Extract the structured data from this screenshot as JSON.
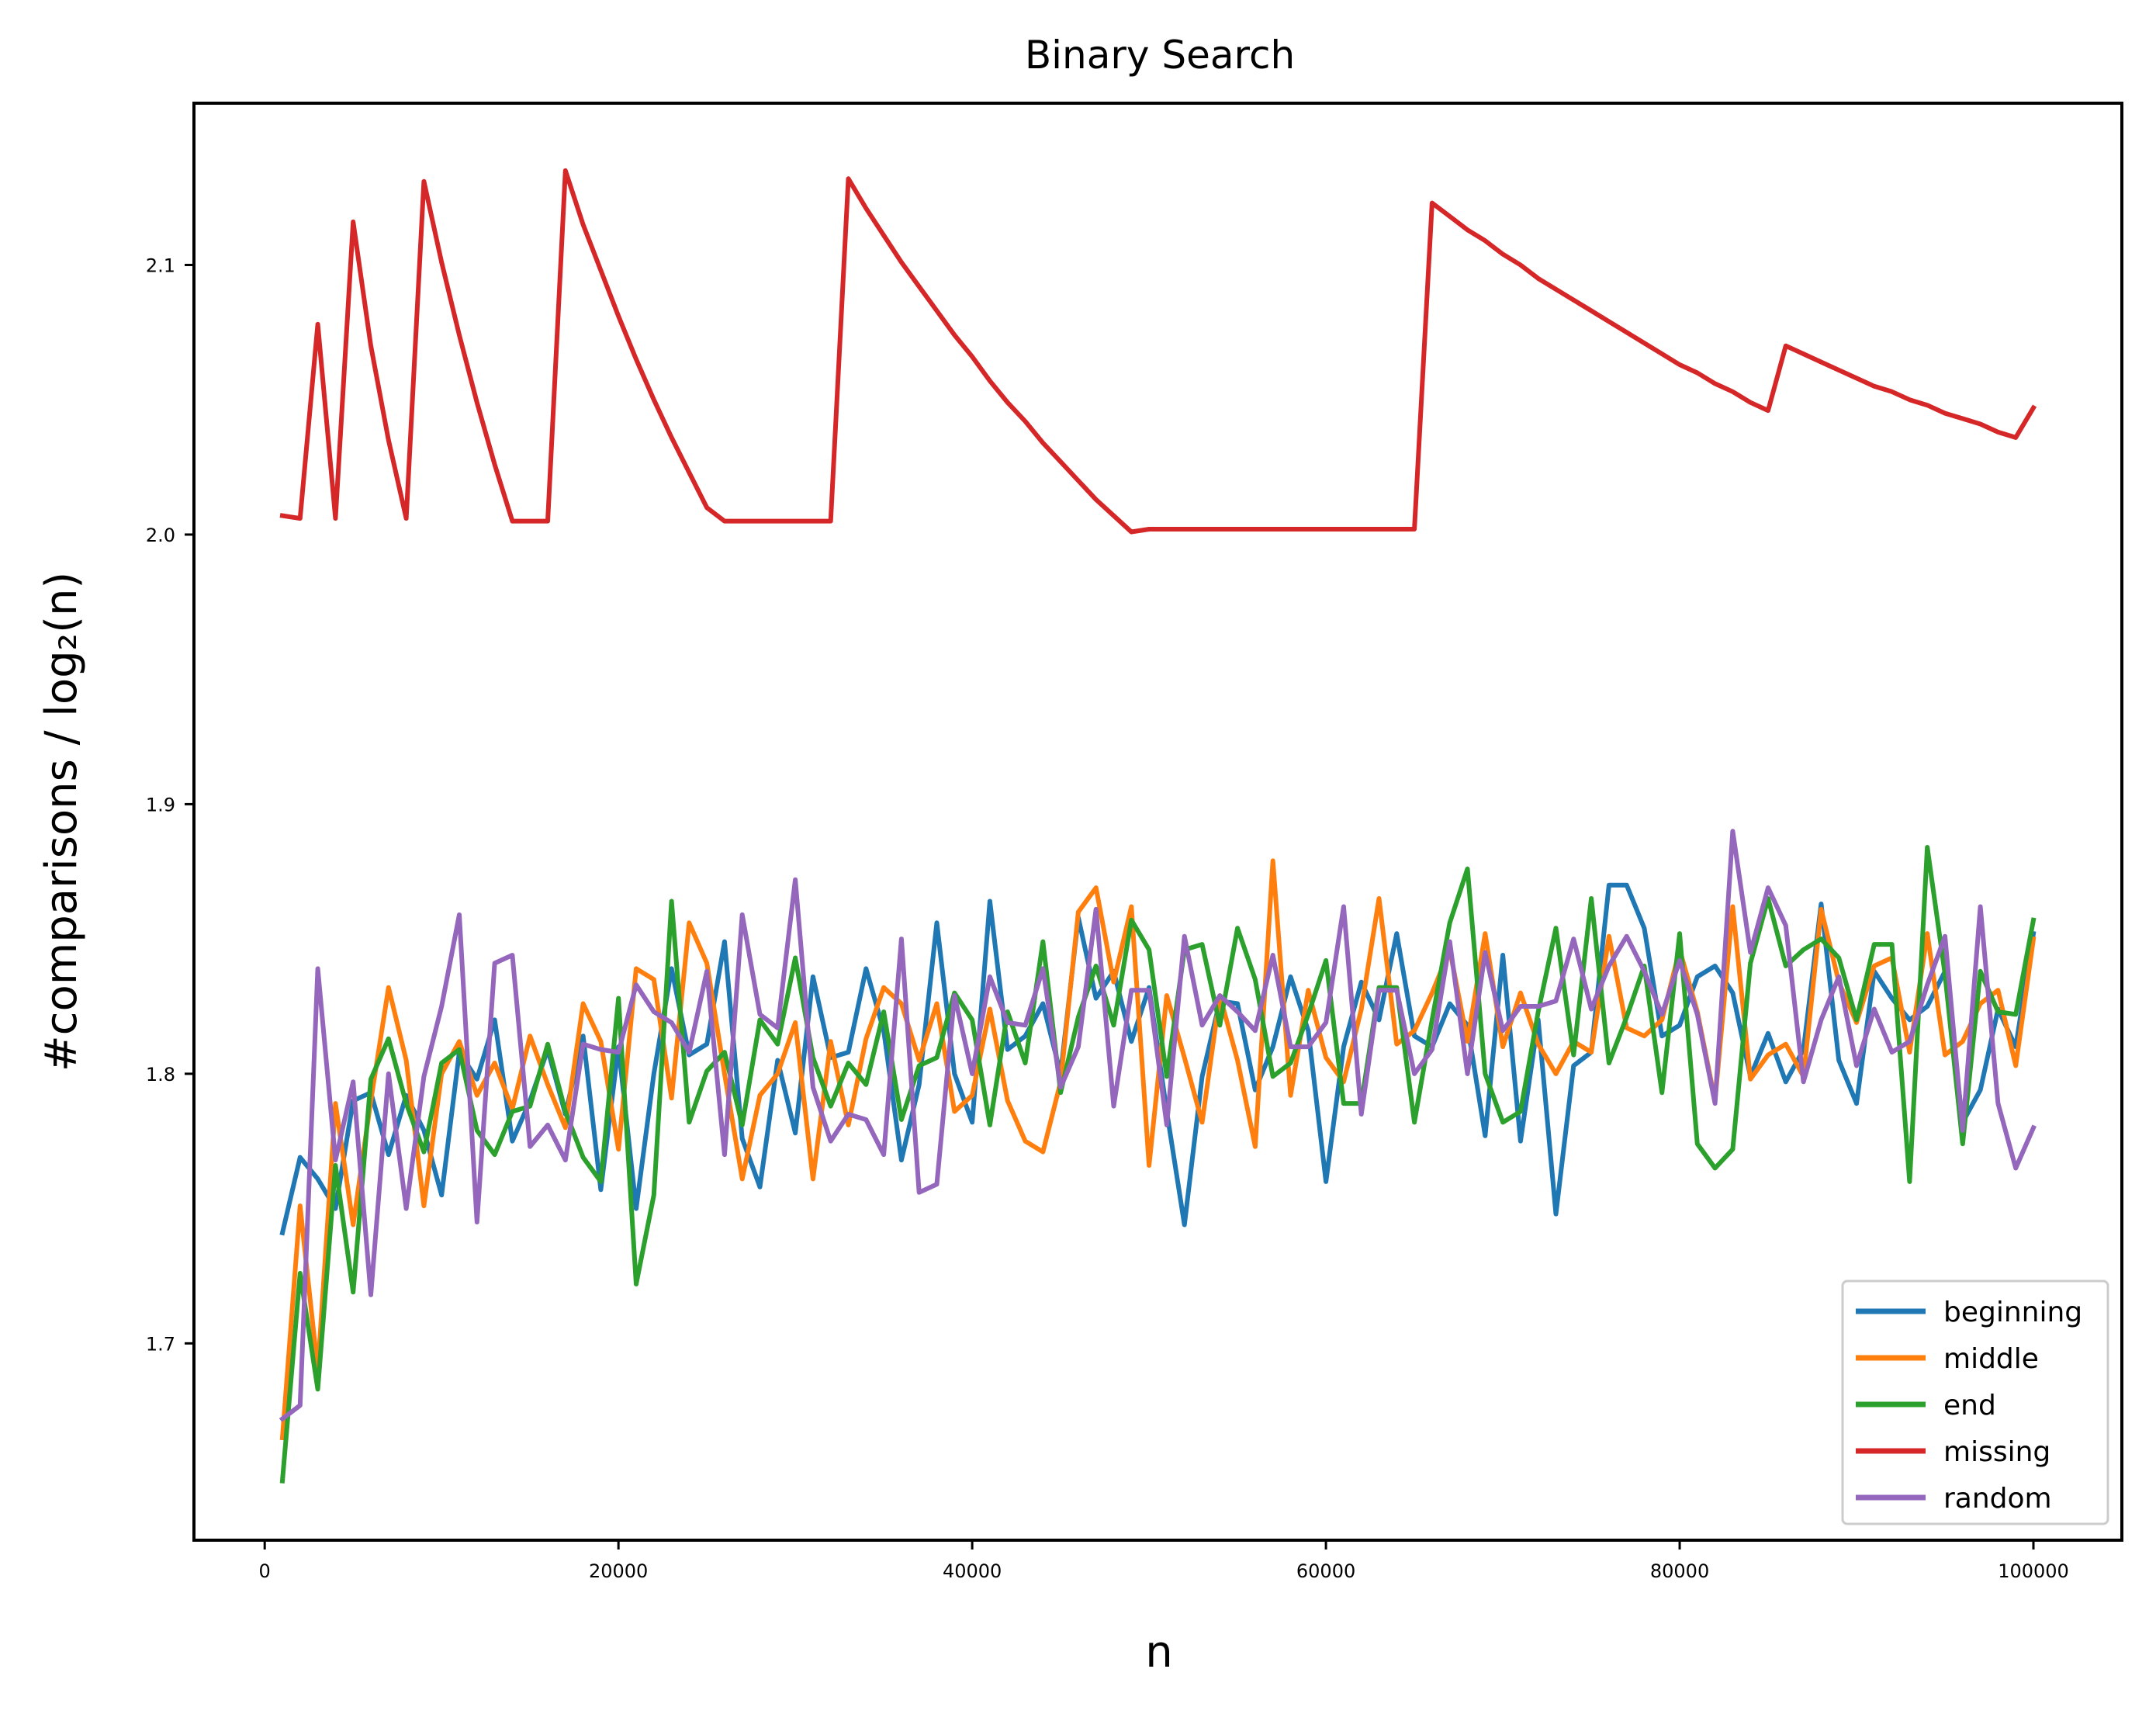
{
  "chart_data": {
    "type": "line",
    "title": "Binary Search",
    "xlabel": "n",
    "ylabel": "#comparisons / log₂(n)",
    "xlim": [
      -4000,
      105000
    ],
    "ylim": [
      1.627,
      2.16
    ],
    "xticks": [
      0,
      20000,
      40000,
      60000,
      80000,
      100000
    ],
    "xtick_labels": [
      "0",
      "20000",
      "40000",
      "60000",
      "80000",
      "100000"
    ],
    "yticks": [
      1.7,
      1.8,
      1.9,
      2.0,
      2.1
    ],
    "ytick_labels": [
      "1.7",
      "1.8",
      "1.9",
      "2.0",
      "2.1"
    ],
    "grid": false,
    "legend_position": "lower-right",
    "x": [
      1000,
      2000,
      3000,
      4000,
      5000,
      6000,
      7000,
      8000,
      9000,
      10000,
      11000,
      12000,
      13000,
      14000,
      15000,
      16000,
      17000,
      18000,
      19000,
      20000,
      21000,
      22000,
      23000,
      24000,
      25000,
      26000,
      27000,
      28000,
      29000,
      30000,
      31000,
      32000,
      33000,
      34000,
      35000,
      36000,
      37000,
      38000,
      39000,
      40000,
      41000,
      42000,
      43000,
      44000,
      45000,
      46000,
      47000,
      48000,
      49000,
      50000,
      51000,
      52000,
      53000,
      54000,
      55000,
      56000,
      57000,
      58000,
      59000,
      60000,
      61000,
      62000,
      63000,
      64000,
      65000,
      66000,
      67000,
      68000,
      69000,
      70000,
      71000,
      72000,
      73000,
      74000,
      75000,
      76000,
      77000,
      78000,
      79000,
      80000,
      81000,
      82000,
      83000,
      84000,
      85000,
      86000,
      87000,
      88000,
      89000,
      90000,
      91000,
      92000,
      93000,
      94000,
      95000,
      96000,
      97000,
      98000,
      99000,
      100000
    ],
    "series": [
      {
        "name": "beginning",
        "color": "#1f77b4",
        "values": [
          1.741,
          1.769,
          1.761,
          1.75,
          1.79,
          1.793,
          1.77,
          1.792,
          1.779,
          1.755,
          1.808,
          1.798,
          1.82,
          1.775,
          1.79,
          1.809,
          1.785,
          1.814,
          1.757,
          1.81,
          1.75,
          1.8,
          1.839,
          1.807,
          1.811,
          1.849,
          1.776,
          1.758,
          1.805,
          1.778,
          1.836,
          1.806,
          1.808,
          1.839,
          1.816,
          1.768,
          1.796,
          1.856,
          1.8,
          1.782,
          1.864,
          1.809,
          1.814,
          1.826,
          1.8,
          1.858,
          1.828,
          1.838,
          1.812,
          1.832,
          1.786,
          1.744,
          1.799,
          1.827,
          1.826,
          1.794,
          1.81,
          1.836,
          1.816,
          1.76,
          1.81,
          1.834,
          1.82,
          1.852,
          1.814,
          1.81,
          1.826,
          1.818,
          1.777,
          1.844,
          1.775,
          1.82,
          1.748,
          1.803,
          1.808,
          1.87,
          1.87,
          1.854,
          1.814,
          1.818,
          1.836,
          1.84,
          1.83,
          1.799,
          1.815,
          1.797,
          1.809,
          1.863,
          1.805,
          1.789,
          1.838,
          1.828,
          1.82,
          1.825,
          1.838,
          1.782,
          1.794,
          1.824,
          1.81,
          1.852
        ]
      },
      {
        "name": "middle",
        "color": "#ff7f0e",
        "values": [
          1.665,
          1.751,
          1.69,
          1.789,
          1.744,
          1.79,
          1.832,
          1.805,
          1.751,
          1.8,
          1.812,
          1.792,
          1.804,
          1.787,
          1.814,
          1.796,
          1.78,
          1.826,
          1.812,
          1.772,
          1.839,
          1.835,
          1.791,
          1.856,
          1.841,
          1.8,
          1.761,
          1.792,
          1.8,
          1.819,
          1.761,
          1.812,
          1.781,
          1.813,
          1.832,
          1.826,
          1.805,
          1.826,
          1.786,
          1.792,
          1.824,
          1.79,
          1.775,
          1.771,
          1.797,
          1.86,
          1.869,
          1.834,
          1.862,
          1.766,
          1.829,
          1.806,
          1.782,
          1.829,
          1.805,
          1.773,
          1.879,
          1.792,
          1.831,
          1.806,
          1.797,
          1.824,
          1.865,
          1.811,
          1.816,
          1.83,
          1.846,
          1.812,
          1.852,
          1.81,
          1.83,
          1.811,
          1.8,
          1.812,
          1.808,
          1.851,
          1.817,
          1.814,
          1.82,
          1.846,
          1.823,
          1.79,
          1.862,
          1.798,
          1.807,
          1.811,
          1.799,
          1.861,
          1.834,
          1.819,
          1.84,
          1.843,
          1.808,
          1.852,
          1.807,
          1.812,
          1.826,
          1.831,
          1.803,
          1.85
        ]
      },
      {
        "name": "end",
        "color": "#2ca02c",
        "values": [
          1.649,
          1.726,
          1.683,
          1.766,
          1.719,
          1.798,
          1.813,
          1.789,
          1.771,
          1.804,
          1.809,
          1.779,
          1.77,
          1.786,
          1.788,
          1.811,
          1.786,
          1.769,
          1.76,
          1.828,
          1.722,
          1.755,
          1.864,
          1.782,
          1.801,
          1.808,
          1.781,
          1.82,
          1.811,
          1.843,
          1.806,
          1.788,
          1.804,
          1.796,
          1.823,
          1.783,
          1.803,
          1.806,
          1.83,
          1.82,
          1.781,
          1.823,
          1.804,
          1.849,
          1.793,
          1.821,
          1.84,
          1.818,
          1.857,
          1.846,
          1.799,
          1.846,
          1.848,
          1.818,
          1.854,
          1.835,
          1.799,
          1.804,
          1.822,
          1.842,
          1.789,
          1.789,
          1.832,
          1.832,
          1.782,
          1.82,
          1.856,
          1.876,
          1.8,
          1.782,
          1.786,
          1.823,
          1.854,
          1.807,
          1.865,
          1.804,
          1.821,
          1.84,
          1.793,
          1.852,
          1.774,
          1.765,
          1.772,
          1.841,
          1.865,
          1.84,
          1.846,
          1.85,
          1.843,
          1.82,
          1.848,
          1.848,
          1.76,
          1.884,
          1.837,
          1.774,
          1.838,
          1.823,
          1.822,
          1.857
        ]
      },
      {
        "name": "missing",
        "color": "#d62728",
        "values": [
          2.007,
          2.006,
          2.078,
          2.006,
          2.116,
          2.07,
          2.035,
          2.006,
          2.131,
          2.101,
          2.074,
          2.049,
          2.026,
          2.005,
          2.005,
          2.005,
          2.135,
          2.115,
          2.098,
          2.081,
          2.065,
          2.05,
          2.036,
          2.023,
          2.01,
          2.005,
          2.005,
          2.005,
          2.005,
          2.005,
          2.005,
          2.005,
          2.132,
          2.121,
          2.111,
          2.101,
          2.092,
          2.083,
          2.074,
          2.066,
          2.057,
          2.049,
          2.042,
          2.034,
          2.027,
          2.02,
          2.013,
          2.007,
          2.001,
          2.002,
          2.002,
          2.002,
          2.002,
          2.002,
          2.002,
          2.002,
          2.002,
          2.002,
          2.002,
          2.002,
          2.002,
          2.002,
          2.002,
          2.002,
          2.002,
          2.123,
          2.118,
          2.113,
          2.109,
          2.104,
          2.1,
          2.095,
          2.091,
          2.087,
          2.083,
          2.079,
          2.075,
          2.071,
          2.067,
          2.063,
          2.06,
          2.056,
          2.053,
          2.049,
          2.046,
          2.07,
          2.067,
          2.064,
          2.061,
          2.058,
          2.055,
          2.053,
          2.05,
          2.048,
          2.045,
          2.043,
          2.041,
          2.038,
          2.036,
          2.047
        ]
      },
      {
        "name": "random",
        "color": "#9467bd",
        "values": [
          1.672,
          1.677,
          1.839,
          1.768,
          1.797,
          1.718,
          1.8,
          1.75,
          1.799,
          1.825,
          1.859,
          1.745,
          1.841,
          1.844,
          1.773,
          1.781,
          1.768,
          1.811,
          1.809,
          1.808,
          1.833,
          1.823,
          1.819,
          1.808,
          1.838,
          1.77,
          1.859,
          1.822,
          1.817,
          1.872,
          1.795,
          1.775,
          1.785,
          1.783,
          1.77,
          1.85,
          1.756,
          1.759,
          1.829,
          1.8,
          1.836,
          1.819,
          1.818,
          1.839,
          1.795,
          1.81,
          1.861,
          1.788,
          1.831,
          1.831,
          1.781,
          1.851,
          1.818,
          1.829,
          1.823,
          1.816,
          1.844,
          1.81,
          1.81,
          1.819,
          1.862,
          1.785,
          1.831,
          1.831,
          1.8,
          1.809,
          1.849,
          1.8,
          1.845,
          1.816,
          1.825,
          1.825,
          1.827,
          1.85,
          1.824,
          1.84,
          1.851,
          1.838,
          1.822,
          1.842,
          1.822,
          1.789,
          1.89,
          1.845,
          1.869,
          1.855,
          1.797,
          1.82,
          1.836,
          1.803,
          1.824,
          1.808,
          1.812,
          1.833,
          1.851,
          1.779,
          1.862,
          1.789,
          1.765,
          1.78
        ]
      }
    ]
  }
}
